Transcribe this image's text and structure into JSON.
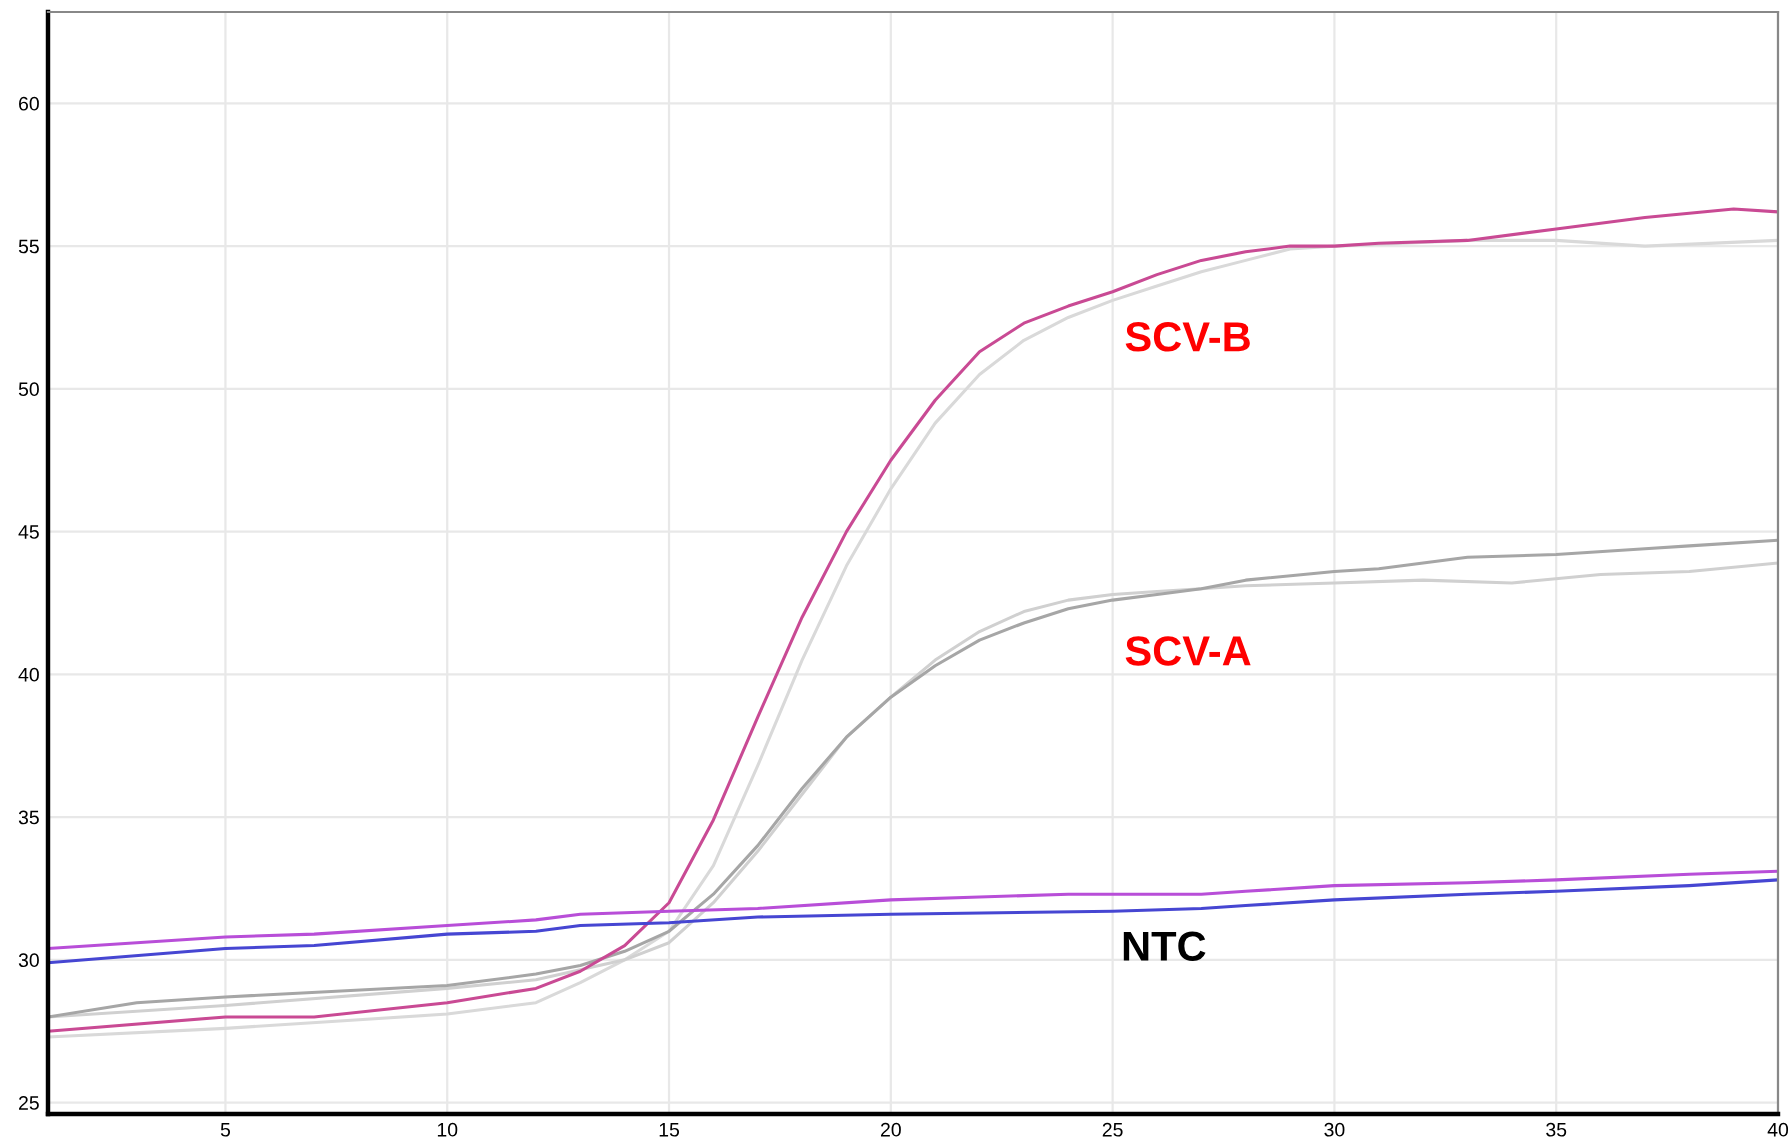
{
  "chart_data": {
    "type": "line",
    "xlim": [
      1,
      40
    ],
    "ylim": [
      24.6,
      63.2
    ],
    "xticks": [
      5,
      10,
      15,
      20,
      25,
      30,
      35,
      40
    ],
    "yticks": [
      25,
      30,
      35,
      40,
      45,
      50,
      55,
      60
    ],
    "grid": true,
    "legend": false,
    "marker": "none",
    "line_style": "solid",
    "annotations": [
      "SCV-B",
      "SCV-A",
      "NTC"
    ],
    "series": [
      {
        "color": "#d9d9d9",
        "x": [
          1,
          5,
          10,
          12,
          13,
          14,
          15,
          16,
          17,
          18,
          19,
          20,
          21,
          22,
          23,
          24,
          25,
          26,
          27,
          28,
          29,
          30,
          33,
          35,
          37,
          40
        ],
        "values": [
          27.3,
          27.6,
          28.1,
          28.5,
          29.2,
          30.0,
          31.0,
          33.3,
          36.8,
          40.5,
          43.8,
          46.5,
          48.8,
          50.5,
          51.7,
          52.5,
          53.1,
          53.6,
          54.1,
          54.5,
          54.9,
          55.0,
          55.2,
          55.2,
          55.0,
          55.2
        ]
      },
      {
        "color": "#d0d0d0",
        "x": [
          1,
          5,
          10,
          12,
          14,
          15,
          16,
          17,
          18,
          19,
          20,
          21,
          22,
          23,
          24,
          25,
          26,
          27,
          28,
          30,
          32,
          34,
          36,
          38,
          40
        ],
        "values": [
          28.0,
          28.4,
          29.0,
          29.3,
          30.0,
          30.6,
          32.0,
          33.8,
          35.8,
          37.8,
          39.2,
          40.5,
          41.5,
          42.2,
          42.6,
          42.8,
          42.9,
          43.0,
          43.1,
          43.2,
          43.3,
          43.2,
          43.5,
          43.6,
          43.9
        ]
      },
      {
        "color": "#a6a6a6",
        "x": [
          1,
          3,
          5,
          10,
          12,
          13,
          14,
          15,
          16,
          17,
          18,
          19,
          20,
          21,
          22,
          23,
          24,
          25,
          26,
          27,
          28,
          30,
          31,
          32,
          33,
          35,
          37,
          38,
          40
        ],
        "values": [
          28.0,
          28.5,
          28.7,
          29.1,
          29.5,
          29.8,
          30.3,
          31.0,
          32.3,
          34.0,
          36.0,
          37.8,
          39.2,
          40.3,
          41.2,
          41.8,
          42.3,
          42.6,
          42.8,
          43.0,
          43.3,
          43.6,
          43.7,
          43.9,
          44.1,
          44.2,
          44.4,
          44.5,
          44.7
        ]
      },
      {
        "color": "#c94a94",
        "x": [
          1,
          5,
          7,
          10,
          12,
          13,
          14,
          15,
          16,
          17,
          18,
          19,
          20,
          21,
          22,
          23,
          24,
          25,
          26,
          27,
          28,
          29,
          30,
          31,
          33,
          35,
          37,
          39,
          40
        ],
        "values": [
          27.5,
          28.0,
          28.0,
          28.5,
          29.0,
          29.6,
          30.5,
          32.0,
          34.9,
          38.5,
          42.0,
          45.0,
          47.5,
          49.6,
          51.3,
          52.3,
          52.9,
          53.4,
          54.0,
          54.5,
          54.8,
          55.0,
          55.0,
          55.1,
          55.2,
          55.6,
          56.0,
          56.3,
          56.2
        ]
      },
      {
        "color": "#4646d2",
        "x": [
          1,
          5,
          7,
          10,
          12,
          13,
          15,
          17,
          20,
          25,
          27,
          28,
          30,
          33,
          35,
          38,
          40
        ],
        "values": [
          29.9,
          30.4,
          30.5,
          30.9,
          31.0,
          31.2,
          31.3,
          31.5,
          31.6,
          31.7,
          31.8,
          31.9,
          32.1,
          32.3,
          32.4,
          32.6,
          32.8
        ]
      },
      {
        "color": "#b84ed8",
        "x": [
          1,
          5,
          7,
          10,
          12,
          13,
          15,
          17,
          20,
          22,
          24,
          27,
          28,
          30,
          33,
          35,
          38,
          40
        ],
        "values": [
          30.4,
          30.8,
          30.9,
          31.2,
          31.4,
          31.6,
          31.7,
          31.8,
          32.1,
          32.2,
          32.3,
          32.3,
          32.4,
          32.6,
          32.7,
          32.8,
          33.0,
          33.1
        ]
      }
    ]
  }
}
